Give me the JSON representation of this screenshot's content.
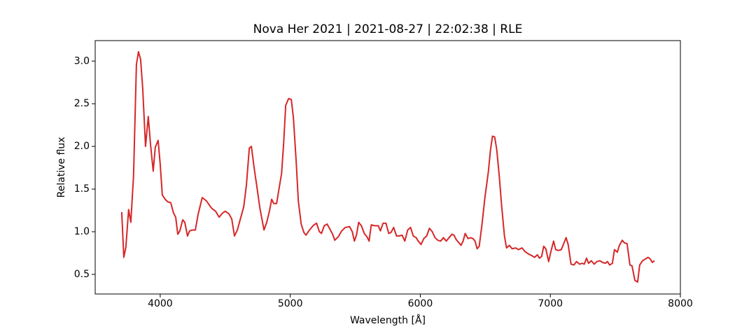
{
  "chart_data": {
    "type": "line",
    "title": "Nova Her 2021 | 2021-08-27 | 22:02:38 | RLE",
    "x_label": "Wavelength [Å]",
    "y_label": "Relative flux",
    "color": "#d62728",
    "xlim": [
      3500,
      8000
    ],
    "ylim": [
      0.27,
      3.24
    ],
    "xticks": [
      4000,
      5000,
      6000,
      7000,
      8000
    ],
    "yticks": [
      0.5,
      {
        "value": 1,
        "label": "1.0"
      },
      1.5,
      {
        "value": 2,
        "label": "2.0"
      },
      2.5,
      {
        "value": 3,
        "label": "3.0"
      }
    ],
    "x": [
      3704,
      3720,
      3736,
      3757,
      3774,
      3795,
      3817,
      3833,
      3849,
      3865,
      3887,
      3908,
      3925,
      3946,
      3962,
      3984,
      4000,
      4016,
      4038,
      4059,
      4081,
      4102,
      4119,
      4135,
      4151,
      4173,
      4189,
      4210,
      4226,
      4248,
      4270,
      4291,
      4323,
      4356,
      4383,
      4399,
      4426,
      4453,
      4480,
      4501,
      4528,
      4550,
      4571,
      4593,
      4620,
      4642,
      4663,
      4685,
      4701,
      4722,
      4744,
      4766,
      4798,
      4819,
      4841,
      4857,
      4873,
      4895,
      4911,
      4933,
      4949,
      4965,
      4987,
      5008,
      5024,
      5046,
      5062,
      5084,
      5105,
      5121,
      5143,
      5175,
      5202,
      5224,
      5240,
      5261,
      5283,
      5305,
      5326,
      5342,
      5369,
      5396,
      5423,
      5456,
      5477,
      5493,
      5509,
      5526,
      5547,
      5569,
      5590,
      5606,
      5623,
      5650,
      5677,
      5693,
      5714,
      5736,
      5757,
      5774,
      5795,
      5817,
      5838,
      5860,
      5881,
      5903,
      5925,
      5946,
      5968,
      5984,
      6005,
      6027,
      6049,
      6070,
      6092,
      6113,
      6135,
      6156,
      6178,
      6200,
      6221,
      6243,
      6259,
      6275,
      6297,
      6313,
      6329,
      6345,
      6367,
      6388,
      6404,
      6421,
      6437,
      6453,
      6474,
      6496,
      6523,
      6539,
      6555,
      6572,
      6588,
      6609,
      6625,
      6647,
      6663,
      6685,
      6706,
      6733,
      6755,
      6782,
      6803,
      6830,
      6857,
      6879,
      6900,
      6916,
      6933,
      6949,
      6965,
      6987,
      7003,
      7025,
      7041,
      7062,
      7084,
      7100,
      7121,
      7137,
      7159,
      7181,
      7202,
      7224,
      7245,
      7261,
      7278,
      7294,
      7315,
      7337,
      7358,
      7380,
      7402,
      7423,
      7439,
      7456,
      7477,
      7493,
      7515,
      7531,
      7553,
      7569,
      7590,
      7612,
      7628,
      7650,
      7671,
      7687,
      7709,
      7731,
      7752,
      7768,
      7784,
      7801
    ],
    "values": [
      1.23,
      0.7,
      0.82,
      1.26,
      1.11,
      1.66,
      2.96,
      3.11,
      3.02,
      2.69,
      2.0,
      2.35,
      2.03,
      1.71,
      1.99,
      2.07,
      1.79,
      1.43,
      1.38,
      1.35,
      1.34,
      1.22,
      1.17,
      0.97,
      1.01,
      1.14,
      1.11,
      0.95,
      1.01,
      1.02,
      1.02,
      1.2,
      1.4,
      1.36,
      1.3,
      1.27,
      1.24,
      1.17,
      1.22,
      1.24,
      1.21,
      1.15,
      0.95,
      1.02,
      1.17,
      1.29,
      1.55,
      1.98,
      2.0,
      1.75,
      1.52,
      1.28,
      1.02,
      1.11,
      1.25,
      1.38,
      1.33,
      1.33,
      1.48,
      1.68,
      2.03,
      2.48,
      2.56,
      2.55,
      2.34,
      1.81,
      1.36,
      1.09,
      0.99,
      0.96,
      1.01,
      1.07,
      1.1,
      1.0,
      0.98,
      1.07,
      1.09,
      1.03,
      0.97,
      0.9,
      0.94,
      1.01,
      1.05,
      1.06,
      1.0,
      0.89,
      0.96,
      1.11,
      1.07,
      0.98,
      0.94,
      0.89,
      1.08,
      1.07,
      1.07,
      1.01,
      1.1,
      1.1,
      0.98,
      0.99,
      1.05,
      0.95,
      0.95,
      0.96,
      0.89,
      1.02,
      1.05,
      0.95,
      0.93,
      0.89,
      0.85,
      0.92,
      0.95,
      1.04,
      1.0,
      0.93,
      0.9,
      0.89,
      0.93,
      0.89,
      0.93,
      0.97,
      0.96,
      0.91,
      0.87,
      0.84,
      0.89,
      0.98,
      0.92,
      0.93,
      0.92,
      0.89,
      0.8,
      0.83,
      1.08,
      1.39,
      1.7,
      1.95,
      2.12,
      2.11,
      1.96,
      1.62,
      1.31,
      0.95,
      0.81,
      0.84,
      0.8,
      0.81,
      0.79,
      0.81,
      0.77,
      0.74,
      0.72,
      0.7,
      0.73,
      0.69,
      0.71,
      0.83,
      0.8,
      0.65,
      0.76,
      0.89,
      0.79,
      0.78,
      0.79,
      0.85,
      0.93,
      0.85,
      0.62,
      0.61,
      0.65,
      0.62,
      0.63,
      0.62,
      0.69,
      0.63,
      0.66,
      0.62,
      0.65,
      0.66,
      0.64,
      0.63,
      0.65,
      0.61,
      0.63,
      0.79,
      0.76,
      0.84,
      0.9,
      0.87,
      0.86,
      0.61,
      0.6,
      0.43,
      0.41,
      0.61,
      0.66,
      0.68,
      0.7,
      0.68,
      0.64,
      0.66
    ]
  }
}
